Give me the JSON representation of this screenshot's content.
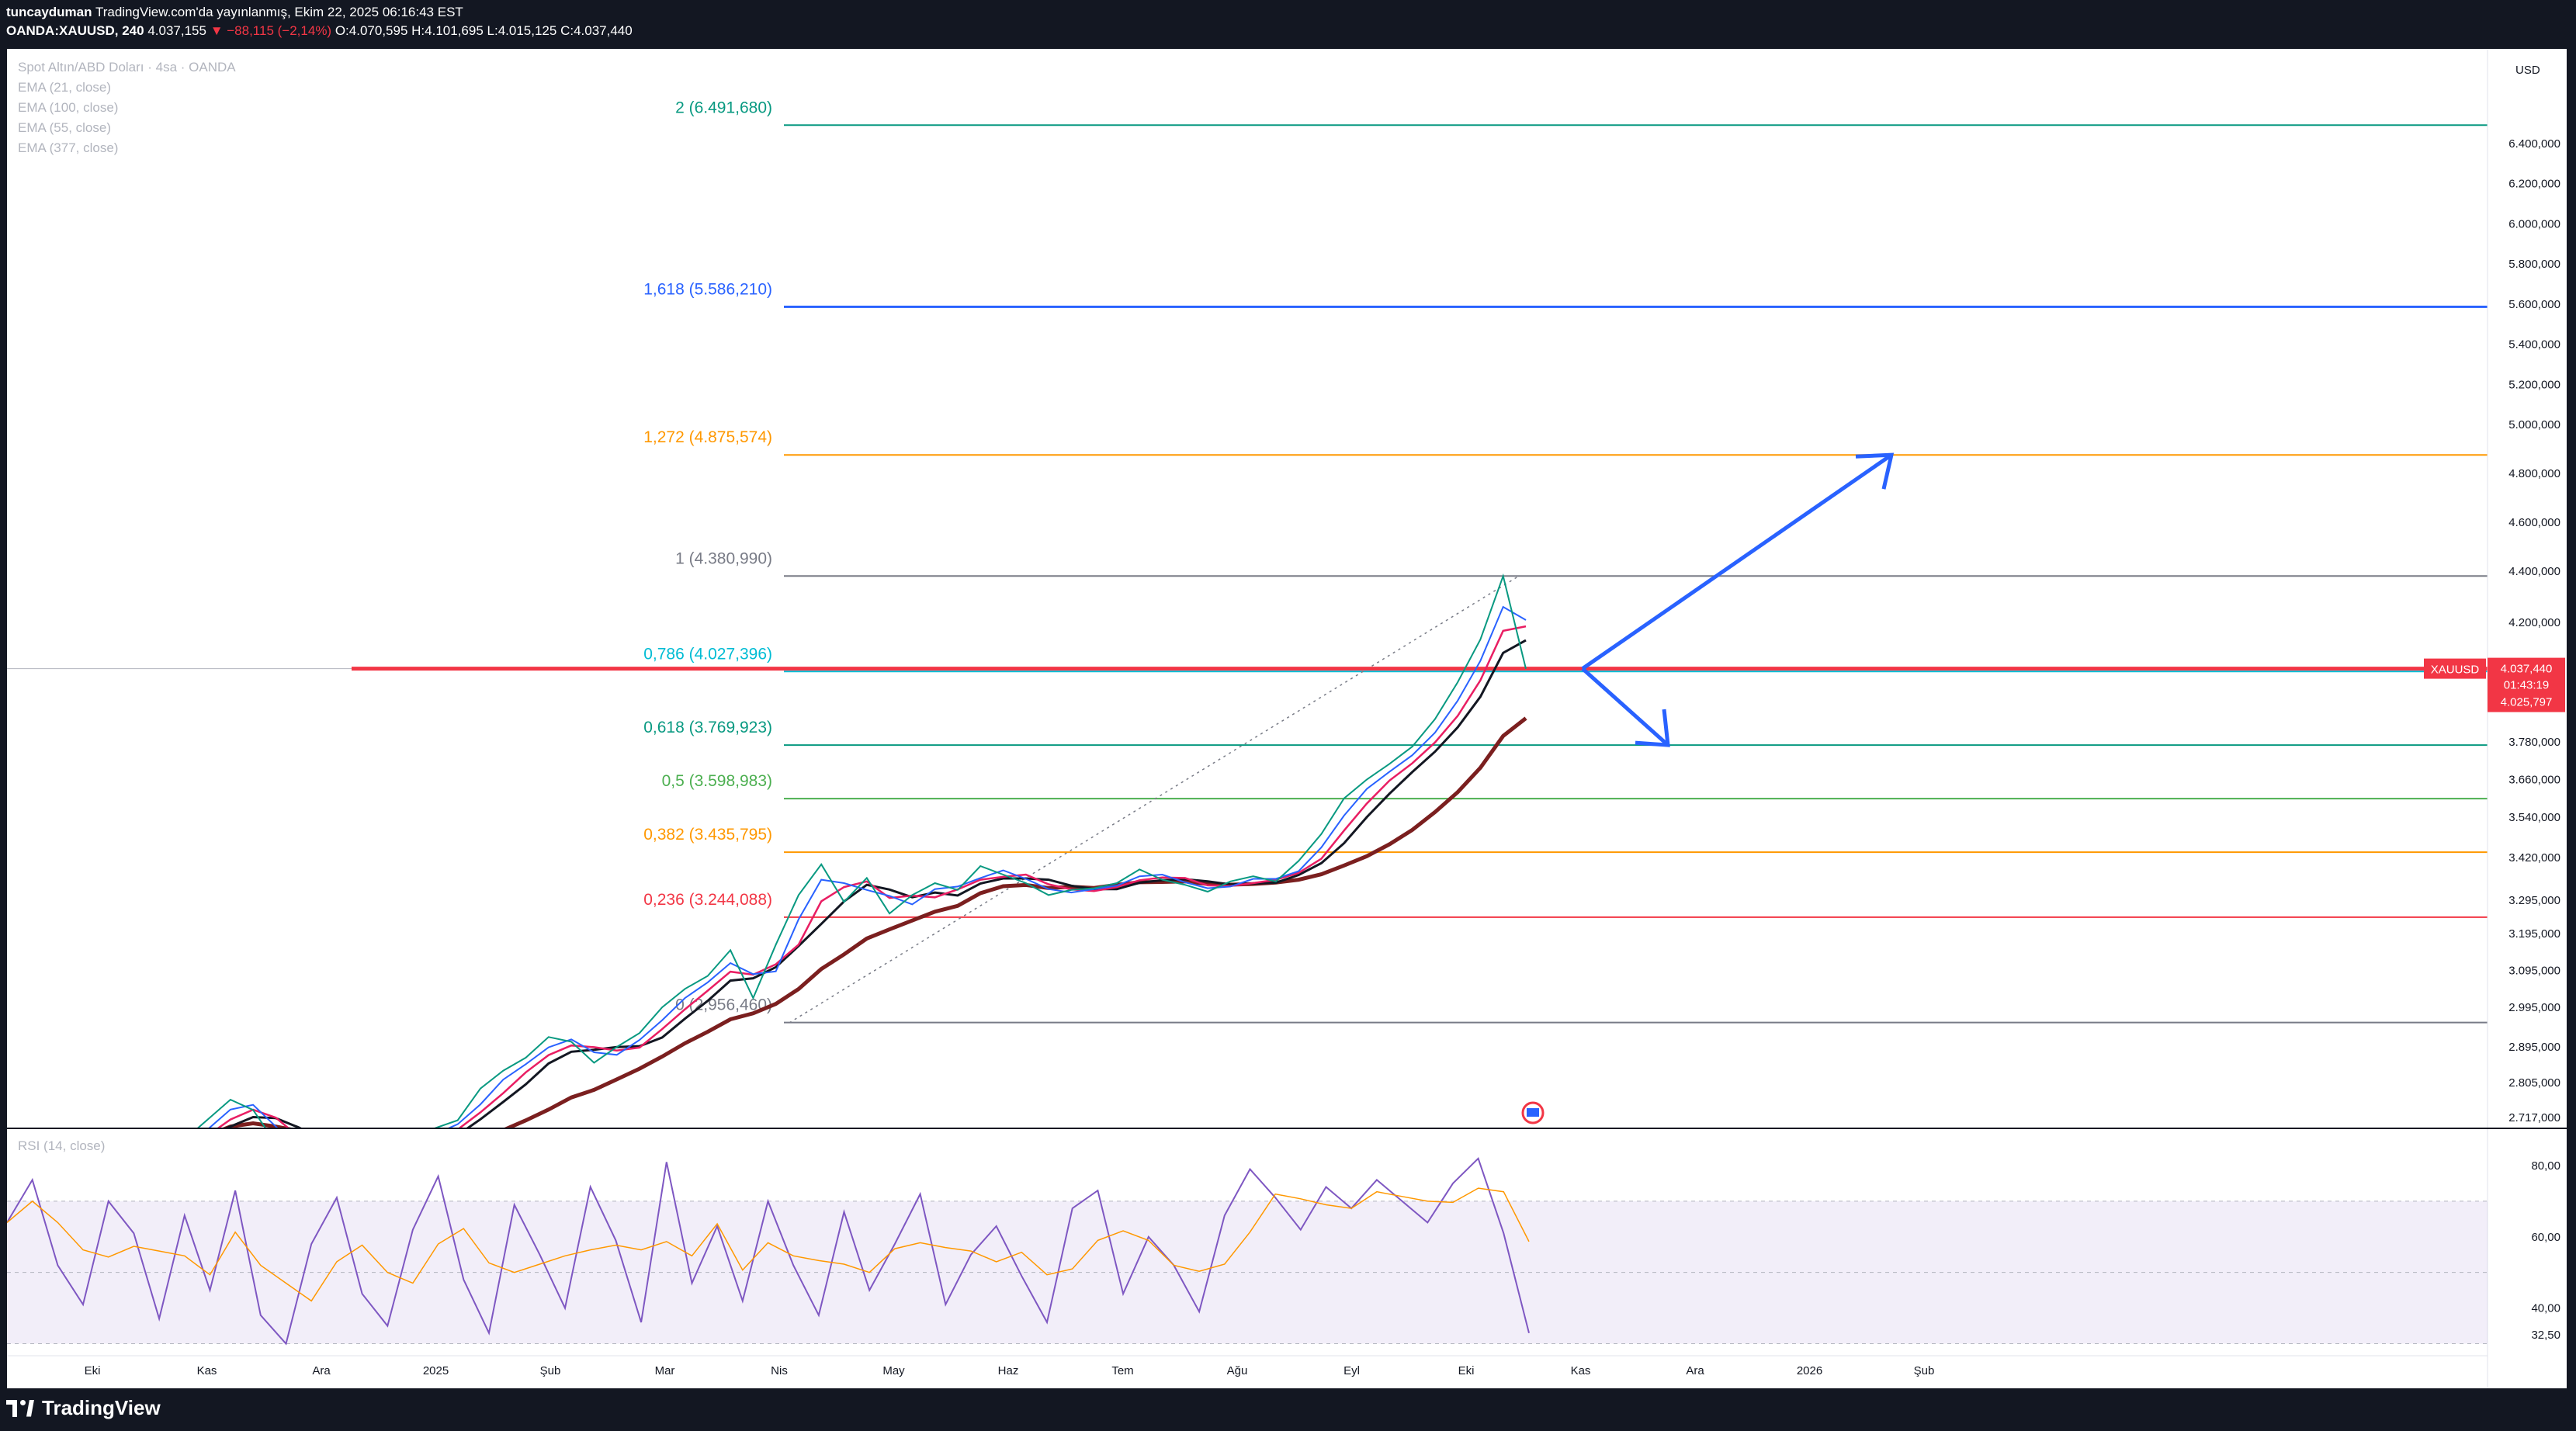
{
  "header": {
    "line1": "tuncayduman TradingView.com'da yayınlanmış, Ekim 22, 2025 06:16:43 EST",
    "author": "tuncayduman",
    "symbol": "OANDA:XAUUSD, 240",
    "last": "4.037,155",
    "change": "▼ −88,115 (−2,14%)",
    "o": "O:4.070,595",
    "h": "H:4.101,695",
    "l": "L:4.015,125",
    "c": "C:4.037,440"
  },
  "legend": {
    "title": "Spot Altın/ABD Doları · 4sa · OANDA",
    "ema1": "EMA (21, close)",
    "ema2": "EMA (100, close)",
    "ema3": "EMA (55, close)",
    "ema4": "EMA (377, close)",
    "rsi": "RSI (14, close)"
  },
  "currency": "USD",
  "price_badge": {
    "symbol": "XAUUSD",
    "price": "4.037,440",
    "countdown": "01:43:19",
    "ema": "4.025,797"
  },
  "brand": "TradingView",
  "colors": {
    "red": "#f23645",
    "blue": "#2962ff",
    "rsi": "#7e57c2",
    "ema377": "#7b1f1f"
  },
  "chart_data": {
    "type": "line",
    "price_axis_ticks": [
      "6.400,000",
      "6.200,000",
      "6.000,000",
      "5.800,000",
      "5.600,000",
      "5.400,000",
      "5.200,000",
      "5.000,000",
      "4.800,000",
      "4.600,000",
      "4.400,000",
      "4.200,000",
      "3.780,000",
      "3.660,000",
      "3.540,000",
      "3.420,000",
      "3.295,000",
      "3.195,000",
      "3.095,000",
      "2.995,000",
      "2.895,000",
      "2.805,000",
      "2.717,000"
    ],
    "rsi_axis_ticks": [
      "80,00",
      "60,00",
      "40,00",
      "32,50"
    ],
    "time_axis": [
      "Eki",
      "Kas",
      "Ara",
      "2025",
      "Şub",
      "Mar",
      "Nis",
      "May",
      "Haz",
      "Tem",
      "Ağu",
      "Eyl",
      "Eki",
      "Kas",
      "Ara",
      "2026",
      "Şub"
    ],
    "fib_levels": [
      {
        "label": "2 (6.491,680)",
        "value": 6491.68,
        "color": "#089981"
      },
      {
        "label": "1,618 (5.586,210)",
        "value": 5586.21,
        "color": "#2962ff"
      },
      {
        "label": "1,272 (4.875,574)",
        "value": 4875.574,
        "color": "#ff9800"
      },
      {
        "label": "1 (4.380,990)",
        "value": 4380.99,
        "color": "#787b86"
      },
      {
        "label": "0,786 (4.027,396)",
        "value": 4027.396,
        "color": "#00bcd4"
      },
      {
        "label": "0,618 (3.769,923)",
        "value": 3769.923,
        "color": "#089981"
      },
      {
        "label": "0,5 (3.598,983)",
        "value": 3598.983,
        "color": "#4caf50"
      },
      {
        "label": "0,382 (3.435,795)",
        "value": 3435.795,
        "color": "#ff9800"
      },
      {
        "label": "0,236 (3.244,088)",
        "value": 3244.088,
        "color": "#f23645"
      },
      {
        "label": "0 (2,956,460)",
        "value": 2956.46,
        "color": "#787b86"
      }
    ],
    "price_series": [
      [
        0,
        2640
      ],
      [
        1,
        2662
      ],
      [
        2,
        2712
      ],
      [
        3,
        2762
      ],
      [
        4,
        2736
      ],
      [
        5,
        2652
      ],
      [
        6,
        2618
      ],
      [
        7,
        2648
      ],
      [
        8,
        2602
      ],
      [
        9,
        2665
      ],
      [
        10,
        2630
      ],
      [
        11,
        2660
      ],
      [
        12,
        2690
      ],
      [
        13,
        2710
      ],
      [
        14,
        2790
      ],
      [
        15,
        2835
      ],
      [
        16,
        2868
      ],
      [
        17,
        2920
      ],
      [
        18,
        2908
      ],
      [
        19,
        2855
      ],
      [
        20,
        2895
      ],
      [
        21,
        2930
      ],
      [
        22,
        2995
      ],
      [
        23,
        3045
      ],
      [
        24,
        3080
      ],
      [
        25,
        3150
      ],
      [
        26,
        3020
      ],
      [
        27,
        3165
      ],
      [
        28,
        3310
      ],
      [
        29,
        3400
      ],
      [
        30,
        3290
      ],
      [
        31,
        3360
      ],
      [
        32,
        3255
      ],
      [
        33,
        3310
      ],
      [
        34,
        3345
      ],
      [
        35,
        3325
      ],
      [
        36,
        3395
      ],
      [
        37,
        3370
      ],
      [
        38,
        3345
      ],
      [
        39,
        3310
      ],
      [
        40,
        3325
      ],
      [
        41,
        3330
      ],
      [
        42,
        3345
      ],
      [
        43,
        3385
      ],
      [
        44,
        3355
      ],
      [
        45,
        3340
      ],
      [
        46,
        3320
      ],
      [
        47,
        3350
      ],
      [
        48,
        3365
      ],
      [
        49,
        3350
      ],
      [
        50,
        3410
      ],
      [
        51,
        3490
      ],
      [
        52,
        3600
      ],
      [
        53,
        3660
      ],
      [
        54,
        3710
      ],
      [
        55,
        3765
      ],
      [
        56,
        3860
      ],
      [
        57,
        3990
      ],
      [
        58,
        4140
      ],
      [
        59,
        4381
      ],
      [
        60,
        4037
      ]
    ],
    "rsi_series": [
      64,
      76,
      52,
      41,
      70,
      61,
      37,
      66,
      45,
      73,
      38,
      30,
      58,
      71,
      44,
      35,
      62,
      77,
      48,
      33,
      69,
      55,
      40,
      74,
      59,
      36,
      81,
      47,
      63,
      42,
      70,
      52,
      38,
      67,
      45,
      58,
      72,
      41,
      55,
      63,
      49,
      36,
      68,
      73,
      44,
      60,
      52,
      39,
      66,
      79,
      71,
      62,
      74,
      68,
      76,
      70,
      64,
      75,
      82,
      61,
      33
    ],
    "forecast_arrows": "up to 1,272 (4.875,574); down to 0,618 (3.769,923)"
  }
}
